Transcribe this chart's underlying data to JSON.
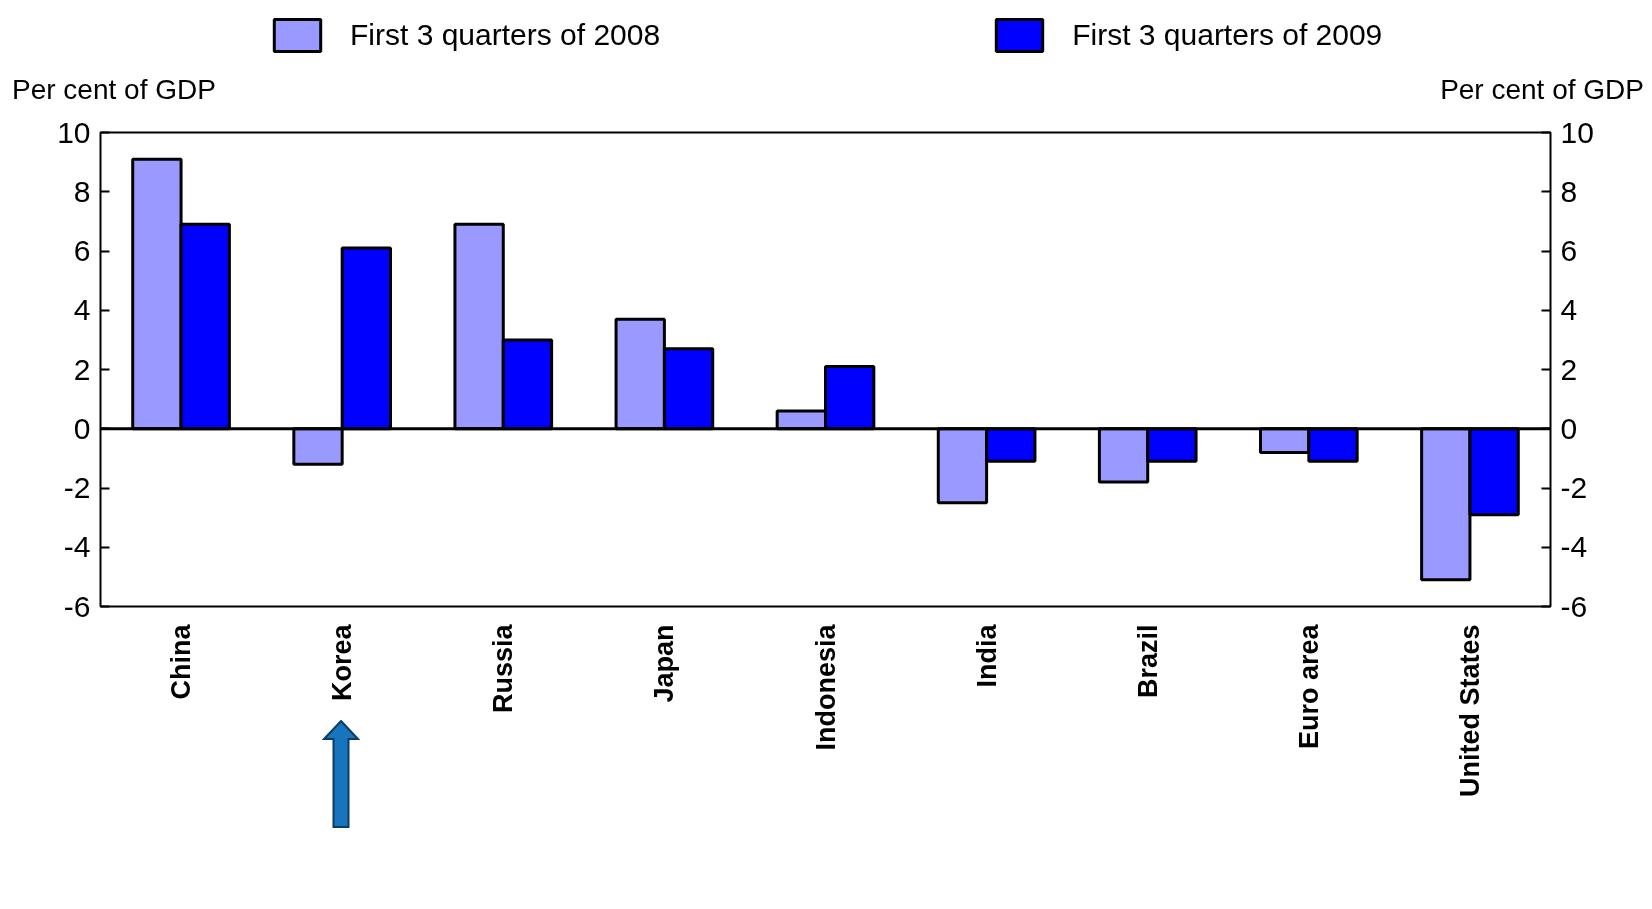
{
  "chart_data": {
    "type": "bar",
    "categories": [
      "China",
      "Korea",
      "Russia",
      "Japan",
      "Indonesia",
      "India",
      "Brazil",
      "Euro area",
      "United States"
    ],
    "series": [
      {
        "name": "First 3 quarters of 2008",
        "color": "#9999ff",
        "values": [
          9.1,
          -1.2,
          6.9,
          3.7,
          0.6,
          -2.5,
          -1.8,
          -0.8,
          -5.1
        ]
      },
      {
        "name": "First 3 quarters of 2009",
        "color": "#0000ff",
        "values": [
          6.9,
          6.1,
          3.0,
          2.7,
          2.1,
          -1.1,
          -1.1,
          -1.1,
          -2.9
        ]
      }
    ],
    "ylabel": "Per cent of GDP",
    "y2label": "Per cent of GDP",
    "ylim": [
      -6,
      10
    ],
    "yticks": [
      -6,
      -4,
      -2,
      0,
      2,
      4,
      6,
      8,
      10
    ],
    "y2lim": [
      -6,
      10
    ],
    "y2ticks": [
      -6,
      -4,
      -2,
      0,
      2,
      4,
      6,
      8,
      10
    ],
    "legend": "top",
    "ref_lines": [
      {
        "axis": "y",
        "value": 0,
        "color": "#000000"
      }
    ]
  }
}
